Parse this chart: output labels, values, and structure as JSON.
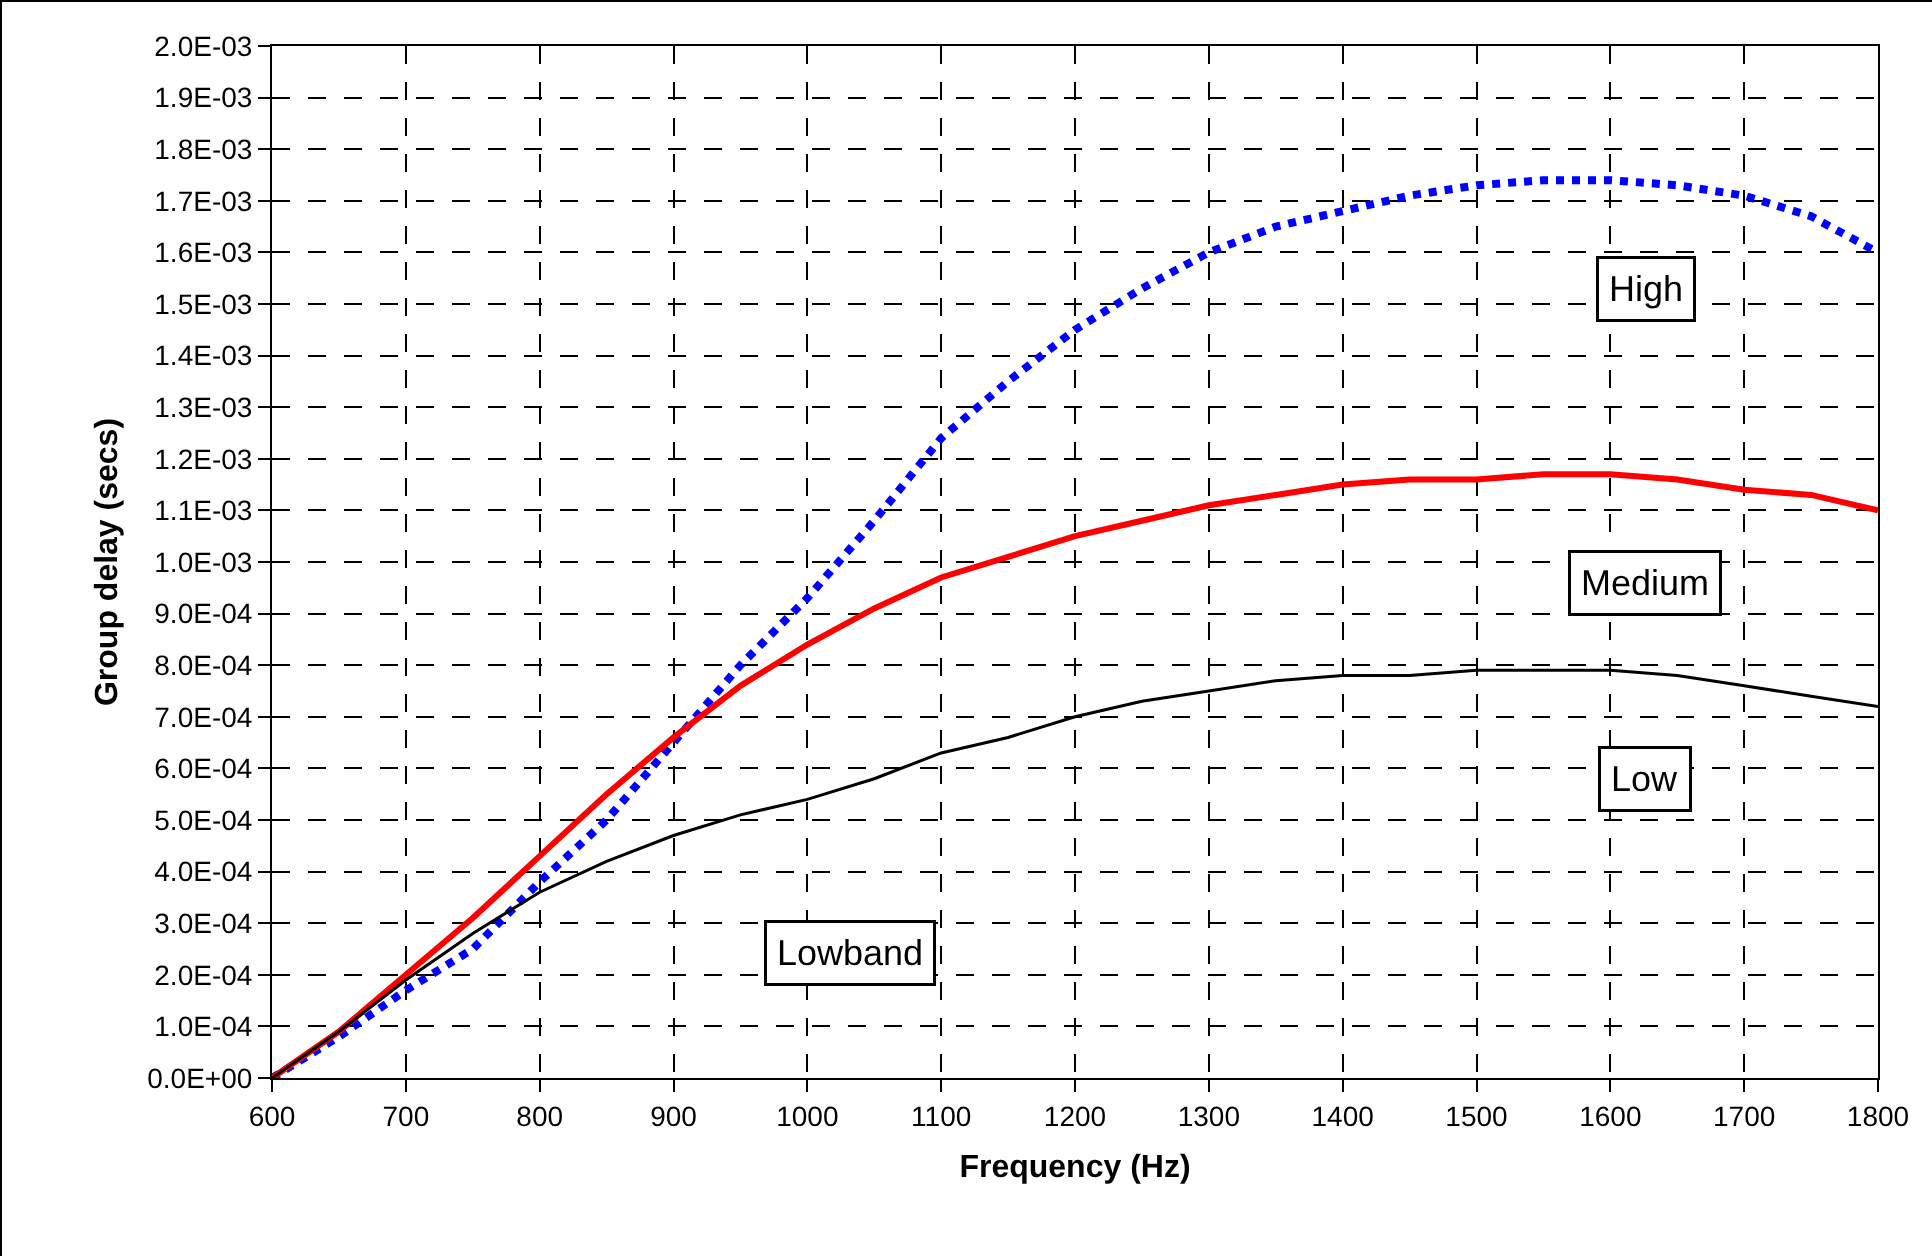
{
  "chart_data": {
    "type": "line",
    "xlabel": "Frequency (Hz)",
    "ylabel": "Group delay (secs)",
    "x": [
      600,
      650,
      700,
      750,
      800,
      850,
      900,
      950,
      1000,
      1050,
      1100,
      1150,
      1200,
      1250,
      1300,
      1350,
      1400,
      1450,
      1500,
      1550,
      1600,
      1650,
      1700,
      1750,
      1800
    ],
    "series": [
      {
        "name": "High",
        "color": "#0000ff",
        "line_style": "dotted",
        "values": [
          0,
          8e-05,
          0.00017,
          0.00025,
          0.00038,
          0.0005,
          0.00065,
          0.0008,
          0.00093,
          0.00108,
          0.00124,
          0.00135,
          0.00145,
          0.00153,
          0.0016,
          0.00165,
          0.00168,
          0.00171,
          0.00173,
          0.00174,
          0.00174,
          0.00173,
          0.00171,
          0.00167,
          0.0016
        ]
      },
      {
        "name": "Medium",
        "color": "#ff0000",
        "line_style": "solid",
        "values": [
          0,
          9e-05,
          0.0002,
          0.00031,
          0.00043,
          0.00055,
          0.00066,
          0.00076,
          0.00084,
          0.00091,
          0.00097,
          0.00101,
          0.00105,
          0.00108,
          0.00111,
          0.00113,
          0.00115,
          0.00116,
          0.00116,
          0.00117,
          0.00117,
          0.00116,
          0.00114,
          0.00113,
          0.0011
        ]
      },
      {
        "name": "Low",
        "color": "#000000",
        "line_style": "solid",
        "values": [
          0,
          9e-05,
          0.00019,
          0.00028,
          0.00036,
          0.00042,
          0.00047,
          0.00051,
          0.00054,
          0.00058,
          0.00063,
          0.00066,
          0.0007,
          0.00073,
          0.00075,
          0.00077,
          0.00078,
          0.00078,
          0.00079,
          0.00079,
          0.00079,
          0.00078,
          0.00076,
          0.00074,
          0.00072
        ]
      }
    ],
    "annotations": [
      "Lowband"
    ],
    "xlim": [
      600,
      1800
    ],
    "xticks": [
      600,
      700,
      800,
      900,
      1000,
      1100,
      1200,
      1300,
      1400,
      1500,
      1600,
      1700,
      1800
    ],
    "ylim": [
      0,
      0.002
    ],
    "yticks": [
      {
        "value": 0,
        "label": "0.0E+00"
      },
      {
        "value": 0.0001,
        "label": "1.0E-04"
      },
      {
        "value": 0.0002,
        "label": "2.0E-04"
      },
      {
        "value": 0.0003,
        "label": "3.0E-04"
      },
      {
        "value": 0.0004,
        "label": "4.0E-04"
      },
      {
        "value": 0.0005,
        "label": "5.0E-04"
      },
      {
        "value": 0.0006,
        "label": "6.0E-04"
      },
      {
        "value": 0.0007,
        "label": "7.0E-04"
      },
      {
        "value": 0.0008,
        "label": "8.0E-04"
      },
      {
        "value": 0.0009,
        "label": "9.0E-04"
      },
      {
        "value": 0.001,
        "label": "1.0E-03"
      },
      {
        "value": 0.0011,
        "label": "1.1E-03"
      },
      {
        "value": 0.0012,
        "label": "1.2E-03"
      },
      {
        "value": 0.0013,
        "label": "1.3E-03"
      },
      {
        "value": 0.0014,
        "label": "1.4E-03"
      },
      {
        "value": 0.0015,
        "label": "1.5E-03"
      },
      {
        "value": 0.0016,
        "label": "1.6E-03"
      },
      {
        "value": 0.0017,
        "label": "1.7E-03"
      },
      {
        "value": 0.0018,
        "label": "1.8E-03"
      },
      {
        "value": 0.0019,
        "label": "1.9E-03"
      },
      {
        "value": 0.002,
        "label": "2.0E-03"
      }
    ],
    "grid": true,
    "legend": false,
    "marker": "none"
  }
}
